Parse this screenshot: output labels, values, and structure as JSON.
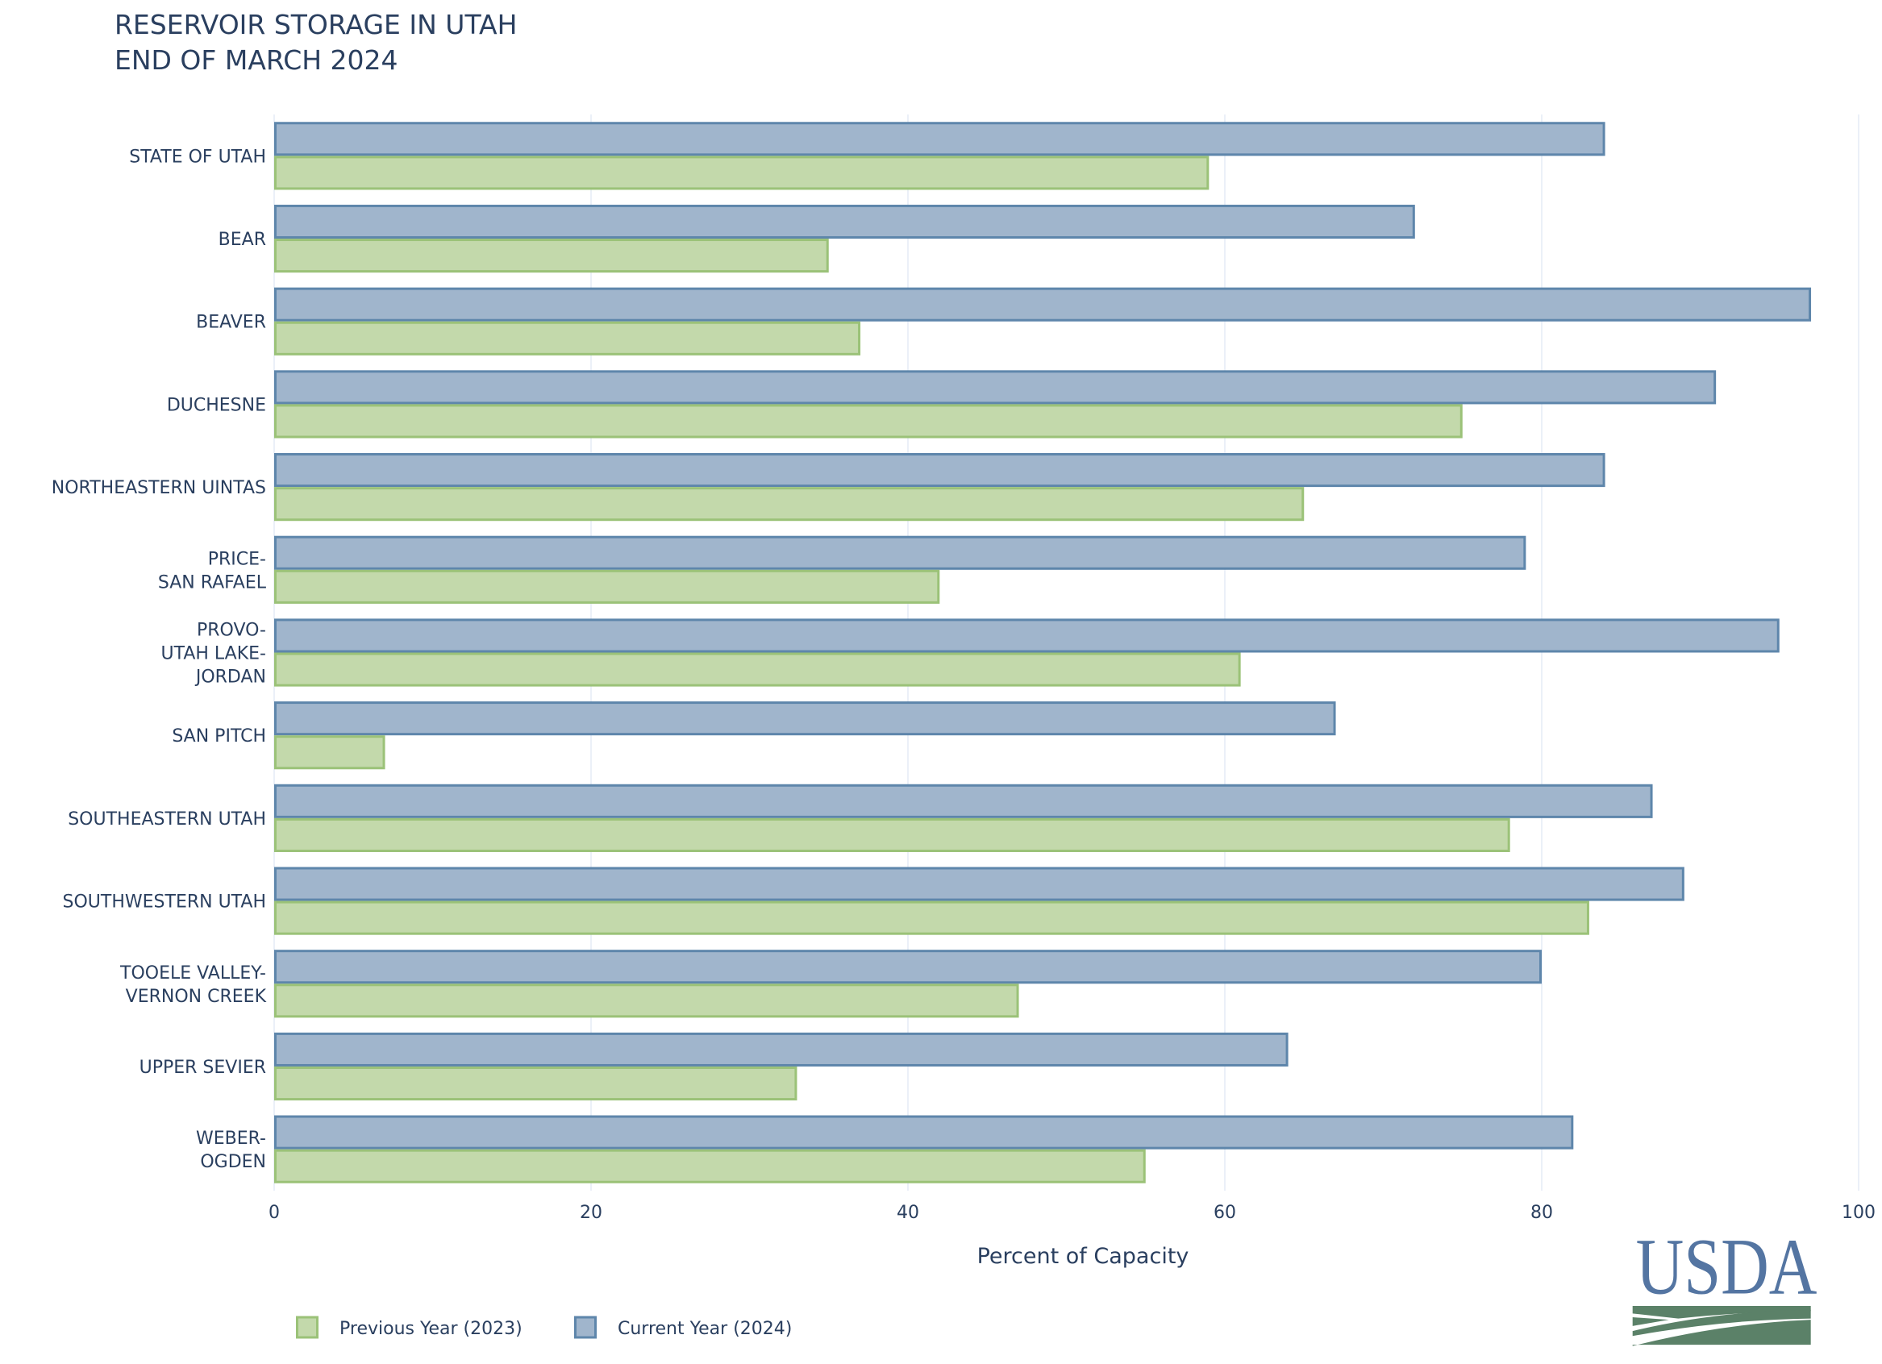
{
  "chart_data": {
    "type": "bar",
    "orientation": "horizontal",
    "title": [
      "RESERVOIR STORAGE IN UTAH",
      "END OF MARCH 2024"
    ],
    "xlabel": "Percent of Capacity",
    "ylabel": "",
    "xlim": [
      0,
      100
    ],
    "xticks": [
      0,
      20,
      40,
      60,
      80,
      100
    ],
    "grid": true,
    "legend_position": "bottom-left",
    "categories": [
      [
        "STATE OF UTAH"
      ],
      [
        "BEAR"
      ],
      [
        "BEAVER"
      ],
      [
        "DUCHESNE"
      ],
      [
        "NORTHEASTERN UINTAS"
      ],
      [
        "PRICE-",
        "SAN RAFAEL"
      ],
      [
        "PROVO-",
        "UTAH LAKE-",
        "JORDAN"
      ],
      [
        "SAN PITCH"
      ],
      [
        "SOUTHEASTERN UTAH"
      ],
      [
        "SOUTHWESTERN UTAH"
      ],
      [
        "TOOELE VALLEY-",
        "VERNON CREEK"
      ],
      [
        "UPPER SEVIER"
      ],
      [
        "WEBER-",
        "OGDEN"
      ]
    ],
    "series": [
      {
        "name": "Previous Year (2023)",
        "fill": "#c3d9ab",
        "stroke": "#9bc278",
        "values": [
          59,
          35,
          37,
          75,
          65,
          42,
          61,
          7,
          78,
          83,
          47,
          33,
          55
        ]
      },
      {
        "name": "Current Year (2024)",
        "fill": "#a0b5cc",
        "stroke": "#5e86ab",
        "values": [
          84,
          72,
          97,
          91,
          84,
          79,
          95,
          67,
          87,
          89,
          80,
          64,
          82
        ]
      }
    ]
  },
  "logo": {
    "text": "USDA",
    "text_color": "#5475a2",
    "field_color": "#5b8168"
  }
}
